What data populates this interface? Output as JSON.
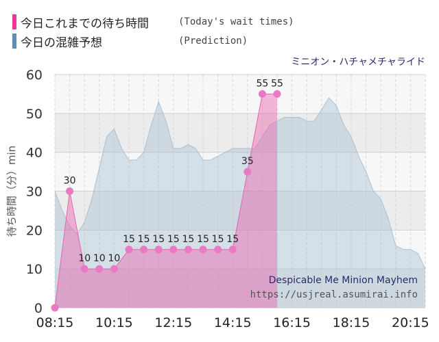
{
  "legend": {
    "today": {
      "label": "今日これまでの待ち時間",
      "en": "(Today's wait times)",
      "color": "#ee3399"
    },
    "prediction": {
      "label": "今日の混雑予想",
      "en": "(Prediction)",
      "color": "#5b8fb9"
    }
  },
  "attraction": {
    "name_ja": "ミニオン・ハチャメチャライド",
    "name_en": "Despicable Me Minion Mayhem",
    "source": "https://usjreal.asumirai.info"
  },
  "chart_data": {
    "type": "area",
    "ylabel": "待ち時間（分）min",
    "ylim": [
      0,
      60
    ],
    "yticks": [
      0,
      10,
      20,
      30,
      40,
      50,
      60
    ],
    "xlim": [
      "08:15",
      "20:45"
    ],
    "xticks": [
      "08:15",
      "10:15",
      "12:15",
      "14:15",
      "16:15",
      "18:15",
      "20:15"
    ],
    "grid": true,
    "series": [
      {
        "kind": "prediction",
        "color": "#9fb8cc",
        "x": [
          "08:15",
          "08:30",
          "08:45",
          "09:00",
          "09:15",
          "09:30",
          "09:45",
          "10:00",
          "10:15",
          "10:30",
          "10:45",
          "11:00",
          "11:15",
          "11:30",
          "11:45",
          "12:00",
          "12:15",
          "12:30",
          "12:45",
          "13:00",
          "13:15",
          "13:30",
          "13:45",
          "14:00",
          "14:15",
          "14:30",
          "14:45",
          "15:00",
          "15:15",
          "15:30",
          "15:45",
          "16:00",
          "16:15",
          "16:30",
          "16:45",
          "17:00",
          "17:15",
          "17:30",
          "17:45",
          "18:00",
          "18:15",
          "18:30",
          "18:45",
          "19:00",
          "19:15",
          "19:30",
          "19:45",
          "20:00",
          "20:15",
          "20:30",
          "20:45"
        ],
        "values": [
          30,
          25,
          21,
          19,
          22,
          28,
          36,
          44,
          46,
          41,
          38,
          38,
          40,
          47,
          53,
          48,
          41,
          41,
          42,
          41,
          38,
          38,
          39,
          40,
          41,
          41,
          41,
          41,
          44,
          47,
          48,
          49,
          49,
          49,
          48,
          48,
          51,
          54,
          52,
          47,
          44,
          39,
          35,
          30,
          28,
          23,
          16,
          15,
          15,
          14,
          10
        ]
      },
      {
        "kind": "today",
        "color": "#ee5aaa",
        "x": [
          "08:15",
          "08:45",
          "09:15",
          "09:45",
          "10:15",
          "10:45",
          "11:15",
          "11:45",
          "12:15",
          "12:45",
          "13:15",
          "13:45",
          "14:15",
          "14:45",
          "15:15",
          "15:45"
        ],
        "values": [
          0,
          30,
          10,
          10,
          10,
          15,
          15,
          15,
          15,
          15,
          15,
          15,
          15,
          35,
          55,
          55
        ]
      }
    ]
  }
}
